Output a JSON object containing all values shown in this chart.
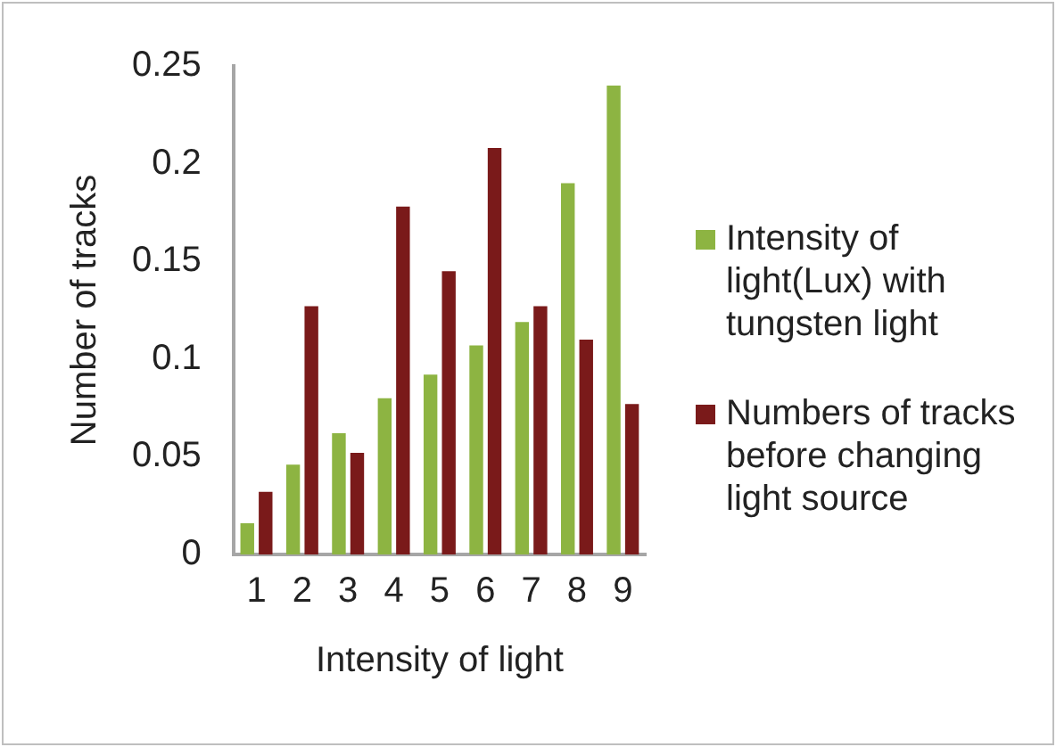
{
  "chart_data": {
    "type": "bar",
    "xlabel": "Intensity of light",
    "ylabel": "Number of tracks",
    "categories": [
      "1",
      "2",
      "3",
      "4",
      "5",
      "6",
      "7",
      "8",
      "9"
    ],
    "series": [
      {
        "name": "Intensity of light(Lux) with tungsten light",
        "color": "#8db442",
        "values": [
          0.016,
          0.046,
          0.062,
          0.08,
          0.092,
          0.107,
          0.119,
          0.19,
          0.24
        ]
      },
      {
        "name": "Numbers of tracks before changing light source",
        "color": "#7a1a1a",
        "values": [
          0.032,
          0.127,
          0.052,
          0.178,
          0.145,
          0.208,
          0.127,
          0.11,
          0.077
        ]
      }
    ],
    "ylim": [
      0,
      0.25
    ],
    "yticks": [
      0,
      0.05,
      0.1,
      0.15,
      0.2,
      0.25
    ],
    "grid": false,
    "legend": "right"
  }
}
